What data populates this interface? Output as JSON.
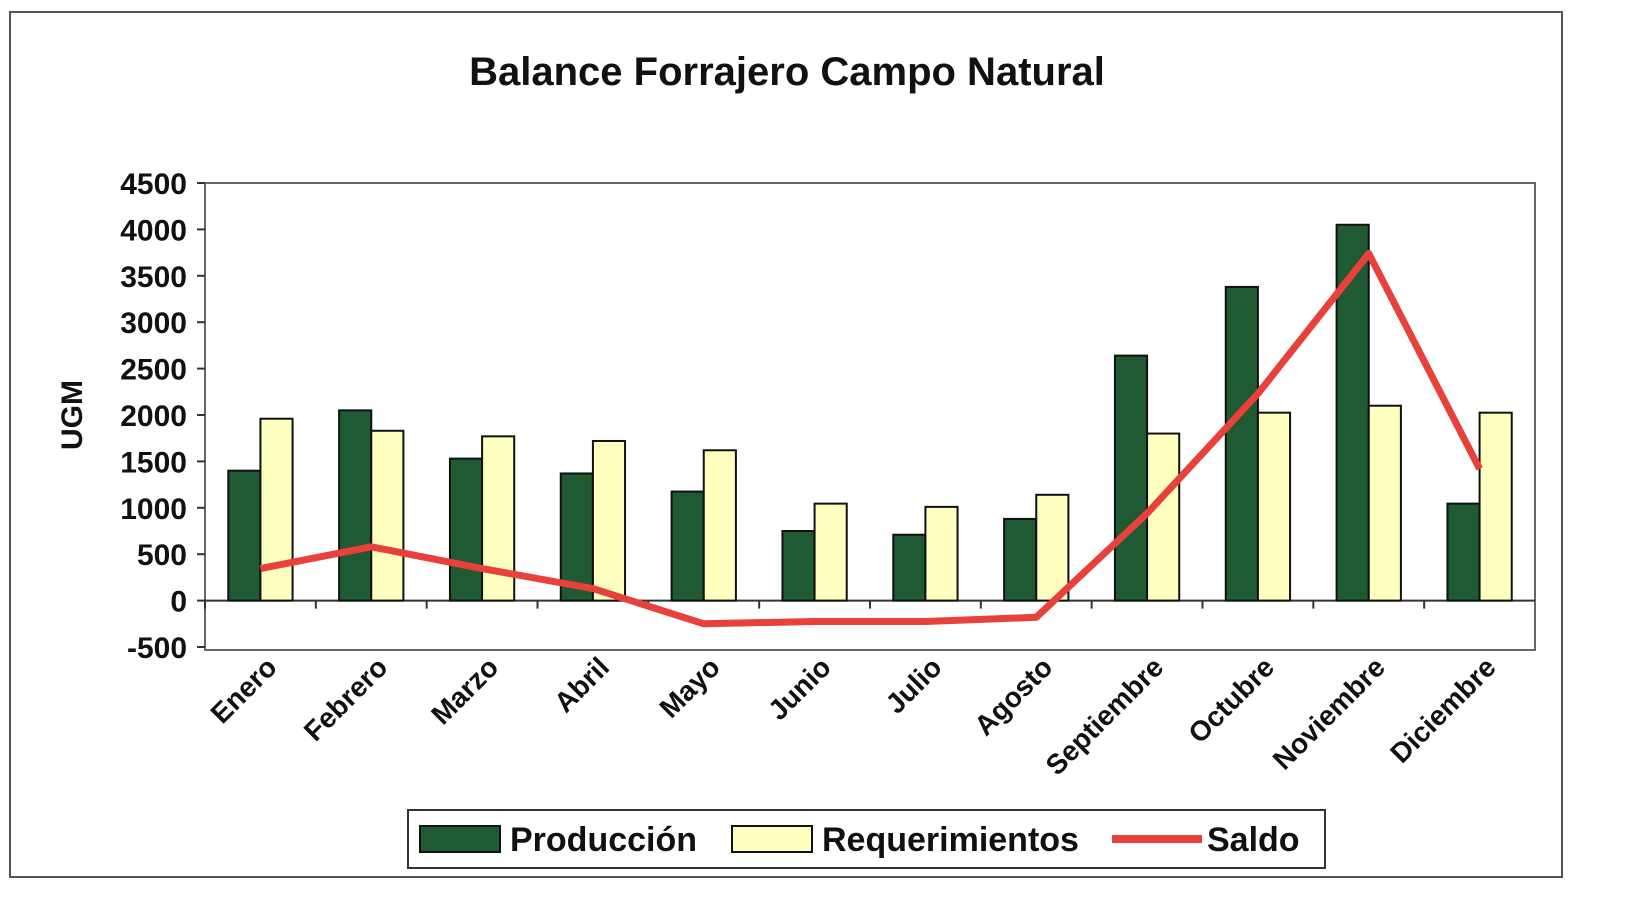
{
  "chart_data": {
    "type": "bar-line",
    "title": "Balance Forrajero Campo Natural",
    "y_label": "UGM",
    "categories": [
      "Enero",
      "Febrero",
      "Marzo",
      "Abril",
      "Mayo",
      "Junio",
      "Julio",
      "Agosto",
      "Septiembre",
      "Octubre",
      "Noviembre",
      "Diciembre"
    ],
    "series": [
      {
        "name": "Producción",
        "type": "bar",
        "color": "#1f5a32",
        "values": [
          1400,
          2050,
          1530,
          1370,
          1175,
          750,
          710,
          880,
          2640,
          3380,
          4050,
          1045
        ]
      },
      {
        "name": "Requerimientos",
        "type": "bar",
        "color": "#ffffc0",
        "values": [
          1960,
          1830,
          1770,
          1720,
          1620,
          1045,
          1010,
          1140,
          1800,
          2025,
          2100,
          2025
        ]
      },
      {
        "name": "Saldo",
        "type": "line",
        "color": "#e8403a",
        "values": [
          345,
          580,
          345,
          130,
          -250,
          -225,
          -225,
          -180,
          940,
          2230,
          3740,
          1420
        ]
      }
    ],
    "ylim": [
      -500,
      4500
    ],
    "yticks": [
      -500,
      0,
      500,
      1000,
      1500,
      2000,
      2500,
      3000,
      3500,
      4000,
      4500
    ]
  }
}
